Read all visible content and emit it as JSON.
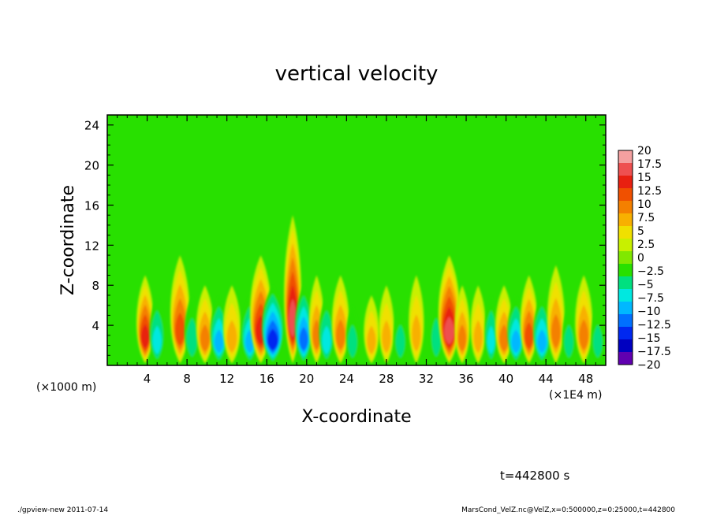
{
  "chart_data": {
    "type": "heatmap",
    "title": "vertical velocity",
    "xlabel": "X-coordinate",
    "ylabel": "Z-coordinate",
    "x_unit_left": "(×1000 m)",
    "x_unit_right": "(×1E4 m)",
    "xlim": [
      0,
      50
    ],
    "ylim": [
      0,
      25
    ],
    "x_ticks": [
      4,
      8,
      12,
      16,
      20,
      24,
      28,
      32,
      36,
      40,
      44,
      48
    ],
    "x_tick_labels": [
      "4",
      "8",
      "12",
      "16",
      "20",
      "24",
      "28",
      "32",
      "36",
      "40",
      "44",
      "48"
    ],
    "y_ticks": [
      4,
      8,
      12,
      16,
      20,
      24
    ],
    "y_tick_labels": [
      "4",
      "8",
      "12",
      "16",
      "20",
      "24"
    ],
    "colorbar": {
      "levels": [
        20,
        17.5,
        15,
        12.5,
        10,
        7.5,
        5,
        2.5,
        0,
        -2.5,
        -5,
        -7.5,
        -10,
        -12.5,
        -15,
        -17.5,
        -20
      ],
      "labels": [
        "20",
        "17.5",
        "15",
        "12.5",
        "10",
        "7.5",
        "5",
        "2.5",
        "0",
        "−2.5",
        "−5",
        "−7.5",
        "−10",
        "−12.5",
        "−15",
        "−17.5",
        "−20"
      ],
      "colors": [
        "#f4a0a0",
        "#ee5050",
        "#e82010",
        "#f05000",
        "#f48000",
        "#f8b000",
        "#f0e000",
        "#c8f000",
        "#80e800",
        "#28e000",
        "#00e080",
        "#00e8e0",
        "#00b8ff",
        "#0070ff",
        "#0028f0",
        "#0000c0",
        "#6000b0"
      ]
    },
    "features": [
      {
        "x": 3.8,
        "width": 0.8,
        "value": 15,
        "top": 9
      },
      {
        "x": 5.0,
        "width": 0.7,
        "value": -8,
        "top": 7
      },
      {
        "x": 7.3,
        "width": 0.9,
        "value": 14,
        "top": 11
      },
      {
        "x": 8.5,
        "width": 0.7,
        "value": -7,
        "top": 7
      },
      {
        "x": 9.8,
        "width": 0.8,
        "value": 10,
        "top": 8
      },
      {
        "x": 11.2,
        "width": 0.8,
        "value": -11,
        "top": 7
      },
      {
        "x": 12.5,
        "width": 0.8,
        "value": 9,
        "top": 8
      },
      {
        "x": 14.3,
        "width": 0.8,
        "value": -12,
        "top": 7
      },
      {
        "x": 15.4,
        "width": 1.0,
        "value": 16,
        "top": 11
      },
      {
        "x": 16.6,
        "width": 1.0,
        "value": -17,
        "top": 8
      },
      {
        "x": 18.6,
        "width": 0.8,
        "value": 19,
        "top": 15
      },
      {
        "x": 19.7,
        "width": 0.8,
        "value": -13,
        "top": 8
      },
      {
        "x": 21.0,
        "width": 0.7,
        "value": 10,
        "top": 9
      },
      {
        "x": 22.0,
        "width": 0.7,
        "value": -8,
        "top": 7
      },
      {
        "x": 23.4,
        "width": 0.8,
        "value": 12,
        "top": 9
      },
      {
        "x": 24.6,
        "width": 0.6,
        "value": -6,
        "top": 6
      },
      {
        "x": 26.5,
        "width": 0.7,
        "value": 8,
        "top": 7
      },
      {
        "x": 28.0,
        "width": 0.7,
        "value": 9,
        "top": 8
      },
      {
        "x": 29.4,
        "width": 0.6,
        "value": -6,
        "top": 6
      },
      {
        "x": 31.0,
        "width": 0.7,
        "value": 8,
        "top": 9
      },
      {
        "x": 33.0,
        "width": 0.6,
        "value": -7,
        "top": 7
      },
      {
        "x": 34.3,
        "width": 1.0,
        "value": 18,
        "top": 11
      },
      {
        "x": 35.6,
        "width": 0.7,
        "value": 12,
        "top": 8
      },
      {
        "x": 37.2,
        "width": 0.7,
        "value": 9,
        "top": 8
      },
      {
        "x": 38.5,
        "width": 0.6,
        "value": -8,
        "top": 7
      },
      {
        "x": 39.8,
        "width": 0.8,
        "value": 11,
        "top": 8
      },
      {
        "x": 41.0,
        "width": 0.8,
        "value": -10,
        "top": 7
      },
      {
        "x": 42.3,
        "width": 0.8,
        "value": 13,
        "top": 9
      },
      {
        "x": 43.6,
        "width": 0.8,
        "value": -11,
        "top": 7
      },
      {
        "x": 45.0,
        "width": 0.8,
        "value": 12,
        "top": 10
      },
      {
        "x": 46.3,
        "width": 0.6,
        "value": -6,
        "top": 6
      },
      {
        "x": 47.8,
        "width": 0.8,
        "value": 10,
        "top": 9
      },
      {
        "x": 49.2,
        "width": 0.6,
        "value": -7,
        "top": 6
      }
    ]
  },
  "time_label": "t=442800 s",
  "footer_left": "./gpview-new   2011-07-14",
  "footer_right": "MarsCond_VelZ.nc@VelZ,x=0:500000,z=0:25000,t=442800"
}
